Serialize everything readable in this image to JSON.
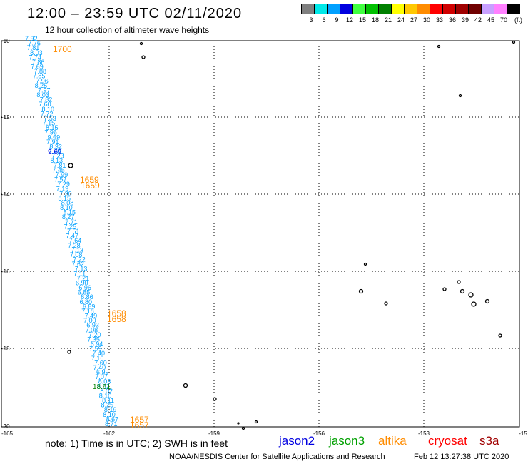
{
  "header": {
    "title": "12:00 – 23:59 UTC 02/11/2020",
    "subtitle": "12 hour collection of altimeter wave heights"
  },
  "legend": {
    "units": "(ft)",
    "bins": [
      {
        "label": "3",
        "color": "#808080"
      },
      {
        "label": "6",
        "color": "#00e8e8"
      },
      {
        "label": "9",
        "color": "#00a0ff"
      },
      {
        "label": "12",
        "color": "#0000e0"
      },
      {
        "label": "15",
        "color": "#40ff40"
      },
      {
        "label": "18",
        "color": "#00c000"
      },
      {
        "label": "21",
        "color": "#008000"
      },
      {
        "label": "24",
        "color": "#ffff00"
      },
      {
        "label": "27",
        "color": "#ffc800"
      },
      {
        "label": "30",
        "color": "#ff8c00"
      },
      {
        "label": "33",
        "color": "#ff0000"
      },
      {
        "label": "36",
        "color": "#d00000"
      },
      {
        "label": "39",
        "color": "#a00000"
      },
      {
        "label": "42",
        "color": "#700000"
      },
      {
        "label": "45",
        "color": "#c8a0ff"
      },
      {
        "label": "70",
        "color": "#ff80ff"
      },
      {
        "label": "",
        "color": "#000000"
      }
    ]
  },
  "map": {
    "lon_ticks": [
      "-165",
      "-162",
      "-159",
      "-156",
      "-153",
      "-15"
    ],
    "lat_ticks": [
      "-10",
      "-12",
      "-14",
      "-16",
      "-18",
      "-20"
    ],
    "track_values": [
      "7.92",
      "7.76",
      "7.81",
      "8.03",
      "7.74",
      "7.86",
      "7.69",
      "7.88",
      "7.85",
      "7.96",
      "8.25",
      "7.97",
      "8.03",
      "7.82",
      "7.60",
      "8.10",
      "7.72",
      "7.53",
      "7.15",
      "8.15",
      "7.96",
      "9.69",
      "7.91",
      "8.32",
      "7.78",
      "7.23",
      "8.13",
      "7.81",
      "7.45",
      "7.99",
      "7.57",
      "7.29",
      "7.19",
      "7.20",
      "8.15",
      "8.08",
      "8.10",
      "8.15",
      "8.27",
      "7.71",
      "7.25",
      "7.51",
      "7.47",
      "7.64",
      "7.28",
      "7.13",
      "7.08",
      "7.22",
      "7.62",
      "7.13",
      "7.11",
      "7.21",
      "6.90",
      "6.96",
      "6.85",
      "6.86",
      "6.80",
      "6.89",
      "7.18",
      "7.49",
      "7.00",
      "6.93",
      "7.08",
      "7.20",
      "7.35",
      "6.94",
      "7.59",
      "7.40",
      "7.16",
      "7.60",
      "7.40",
      "6.99",
      "7.07",
      "8.03",
      "8.02",
      "8.02",
      "8.10",
      "8.11",
      "8.25",
      "8.19",
      "8.10",
      "8.67",
      "8.71"
    ],
    "highlights": [
      {
        "text": "9.69",
        "color": "#0000e0"
      },
      {
        "text": "18.61",
        "color": "#008000"
      }
    ],
    "time_labels": [
      "1700",
      "1659",
      "1659",
      "1658",
      "1658",
      "1657",
      "1657"
    ],
    "track_color": "#00a0ff",
    "time_color": "#ff8c00"
  },
  "footer": {
    "note": "note:  1) Time is in UTC;  2) SWH is in feet",
    "satellites": [
      {
        "name": "jason2",
        "color": "#0000e0"
      },
      {
        "name": "jason3",
        "color": "#00a000"
      },
      {
        "name": "altika",
        "color": "#ff8c00"
      },
      {
        "name": "cryosat",
        "color": "#ff0000"
      },
      {
        "name": "s3a",
        "color": "#a00000"
      }
    ],
    "credit": "NOAA/NESDIS Center for Satellite Applications and Research",
    "timestamp": "Feb 12 13:27:38 UTC 2020"
  }
}
